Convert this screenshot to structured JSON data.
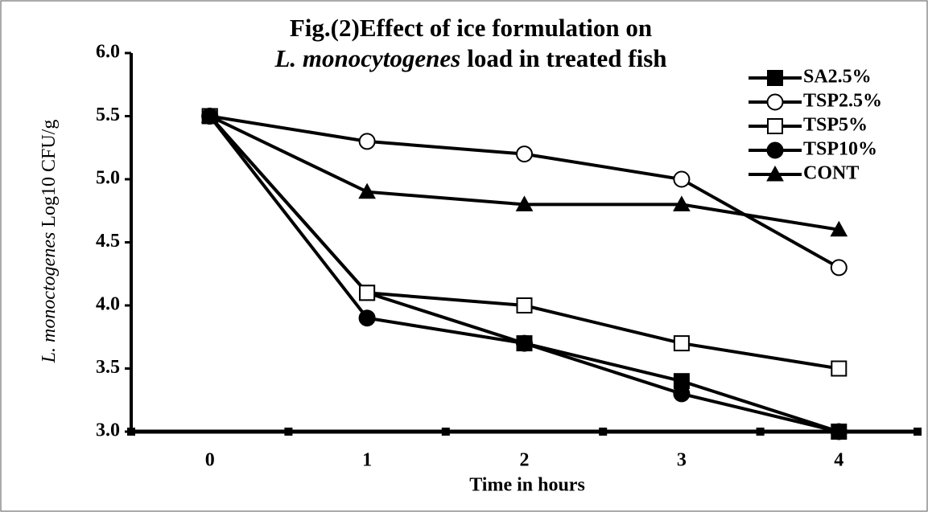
{
  "chart_data": {
    "type": "line",
    "title": [
      "Fig.(2)Effect of ice  formulation on",
      "L. monocytogenes",
      "load in treated fish"
    ],
    "xlabel": "Time in hours",
    "ylabel": [
      "L. monoctogenes",
      "Log10 CFU/g"
    ],
    "x": [
      0,
      1,
      2,
      3,
      4
    ],
    "xlim": [
      -0.5,
      4.5
    ],
    "xticks": [
      0,
      1,
      2,
      3,
      4
    ],
    "ylim": [
      3,
      6
    ],
    "yticks": [
      {
        "value": 3,
        "label": "3.0"
      },
      {
        "value": 3.5,
        "label": "3.5"
      },
      {
        "value": 4,
        "label": "4.0"
      },
      {
        "value": 4.5,
        "label": "4.5"
      },
      {
        "value": 5,
        "label": "5.0"
      },
      {
        "value": 5.5,
        "label": "5.5"
      },
      {
        "value": 6,
        "label": "6.0"
      }
    ],
    "legend": "top-right",
    "series": [
      {
        "name": "SA2.5%",
        "color": "#000000",
        "marker": "square-filled",
        "values": [
          5.5,
          4.1,
          3.7,
          3.4,
          3.0
        ]
      },
      {
        "name": "TSP2.5%",
        "color": "#000000",
        "marker": "circle-open",
        "values": [
          5.5,
          5.3,
          5.2,
          5.0,
          4.3
        ]
      },
      {
        "name": "TSP5%",
        "color": "#000000",
        "marker": "square-open",
        "values": [
          5.5,
          4.1,
          4.0,
          3.7,
          3.5
        ]
      },
      {
        "name": "TSP10%",
        "color": "#000000",
        "marker": "circle-filled",
        "values": [
          5.5,
          3.9,
          3.7,
          3.3,
          3.0
        ]
      },
      {
        "name": "CONT",
        "color": "#000000",
        "marker": "triangle-filled",
        "values": [
          5.5,
          4.9,
          4.8,
          4.8,
          4.6
        ]
      }
    ]
  }
}
